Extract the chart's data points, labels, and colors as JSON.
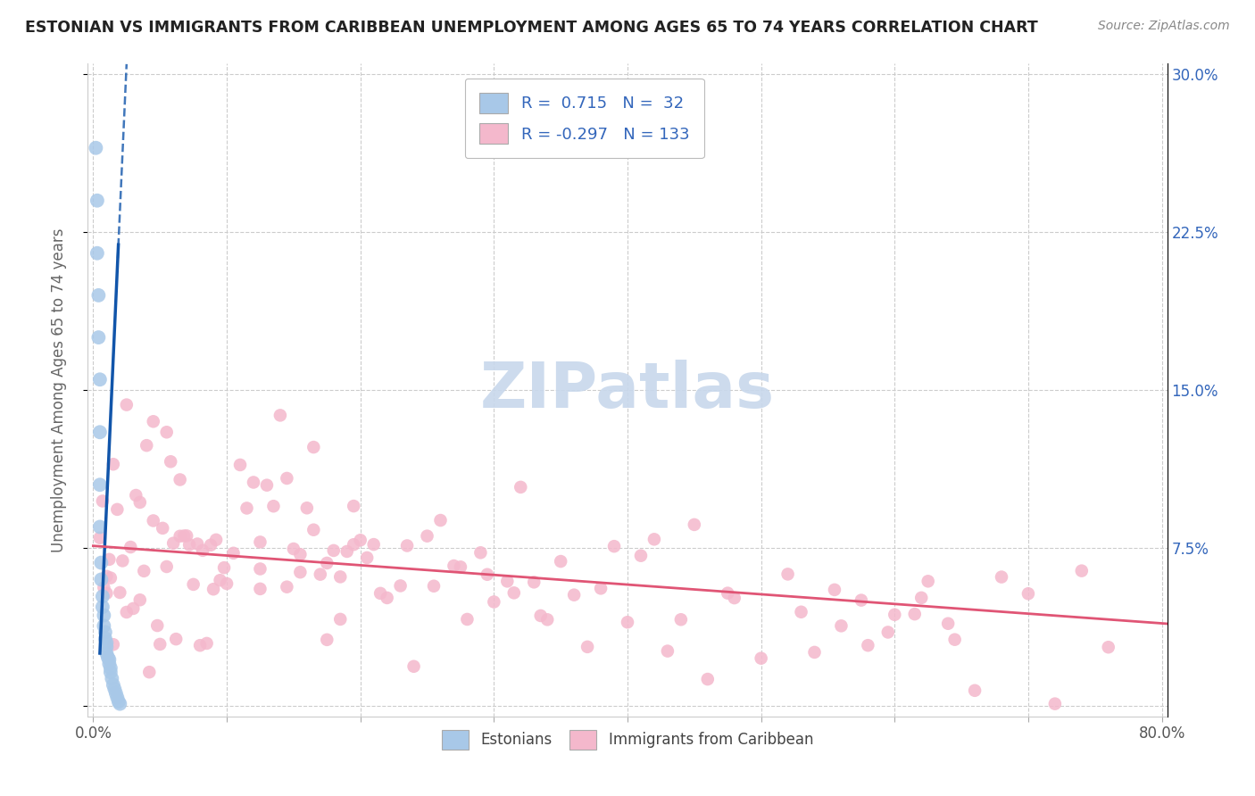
{
  "title": "ESTONIAN VS IMMIGRANTS FROM CARIBBEAN UNEMPLOYMENT AMONG AGES 65 TO 74 YEARS CORRELATION CHART",
  "source": "Source: ZipAtlas.com",
  "ylabel": "Unemployment Among Ages 65 to 74 years",
  "xlim": [
    -0.004,
    0.804
  ],
  "ylim": [
    -0.005,
    0.305
  ],
  "R_estonian": 0.715,
  "N_estonian": 32,
  "R_caribbean": -0.297,
  "N_caribbean": 133,
  "estonian_color": "#a8c8e8",
  "estonian_edge_color": "#6699cc",
  "caribbean_color": "#f4b8cc",
  "caribbean_edge_color": "#e888a8",
  "estonian_line_color": "#1155aa",
  "caribbean_line_color": "#e05575",
  "watermark_color": "#c8d8ec",
  "grid_color": "#cccccc",
  "right_tick_color": "#3366bb",
  "ylabel_color": "#666666",
  "title_color": "#222222",
  "source_color": "#888888",
  "bottom_legend_color": "#444444"
}
